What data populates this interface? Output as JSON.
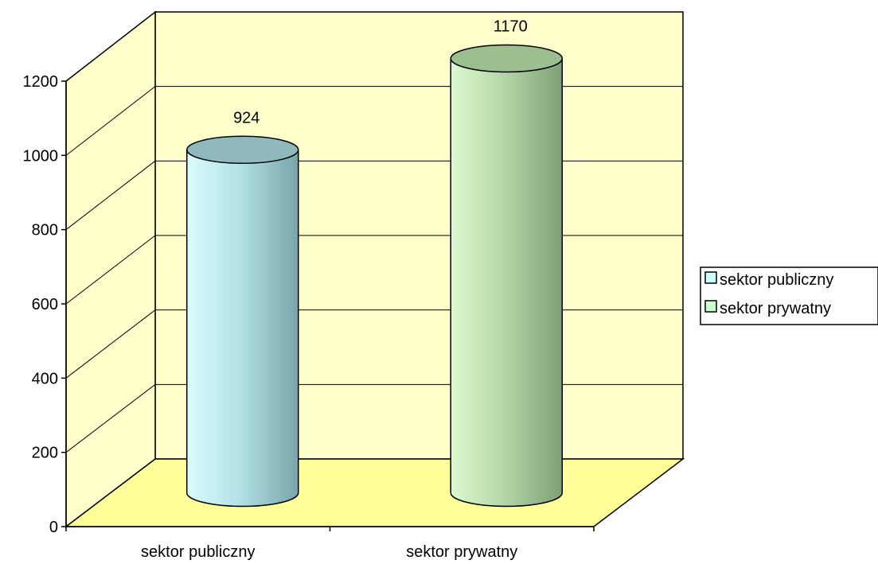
{
  "chart_data": {
    "type": "bar",
    "bar_shape": "3d-cylinder",
    "categories": [
      "sektor publiczny",
      "sektor prywatny"
    ],
    "series": [
      {
        "values": [
          924,
          1170
        ]
      }
    ],
    "data_labels": [
      "924",
      "1170"
    ],
    "ylim": [
      0,
      1200
    ],
    "yticks": [
      "0",
      "200",
      "400",
      "600",
      "800",
      "1000",
      "1200"
    ],
    "grid": true,
    "legend": {
      "placement": "right",
      "entries": [
        "sektor publiczny",
        "sektor prywatny"
      ]
    },
    "colors": {
      "walls": "#ffffcc",
      "floor": "#ffff99",
      "bar1": "#bff3f3",
      "bar2": "#c4f0b8",
      "legend1": "#ccffff",
      "legend2": "#ccffcc"
    }
  }
}
